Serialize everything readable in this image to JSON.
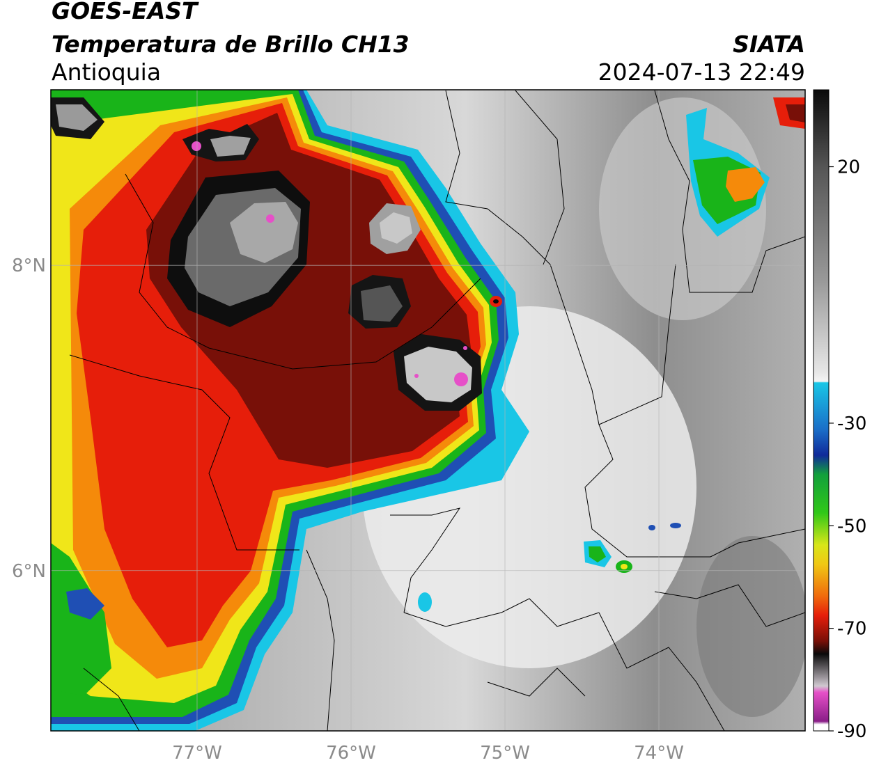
{
  "header": {
    "satellite": "GOES-EAST",
    "product": "Temperatura de Brillo CH13",
    "region": "Antioquia",
    "organization": "SIATA",
    "datetime": "2024-07-13 22:49"
  },
  "map": {
    "lon_range": [
      -77.95,
      -73.05
    ],
    "lat_range": [
      4.95,
      9.15
    ],
    "lon_ticks": [
      {
        "value": -77,
        "label": "77°W"
      },
      {
        "value": -76,
        "label": "76°W"
      },
      {
        "value": -75,
        "label": "75°W"
      },
      {
        "value": -74,
        "label": "74°W"
      }
    ],
    "lat_ticks": [
      {
        "value": 8,
        "label": "8°N"
      },
      {
        "value": 6,
        "label": "6°N"
      }
    ]
  },
  "colorbar": {
    "range": [
      -90,
      35
    ],
    "ticks": [
      {
        "value": 20,
        "label": "20"
      },
      {
        "value": -30,
        "label": "-30"
      },
      {
        "value": -50,
        "label": "-50"
      },
      {
        "value": -70,
        "label": "-70"
      },
      {
        "value": -90,
        "label": "-90"
      }
    ],
    "colors": {
      "warm_gray": "#8c8c8c",
      "white": "#f0f0f0",
      "cyan": "#19c6e6",
      "blue": "#1f4fb4",
      "green": "#19b419",
      "yellow": "#f0e619",
      "orange": "#f58a0a",
      "red": "#e61e0a",
      "dark_red": "#781008",
      "black": "#0a0a0a",
      "pink": "#e650c8",
      "purple": "#a02898"
    }
  }
}
